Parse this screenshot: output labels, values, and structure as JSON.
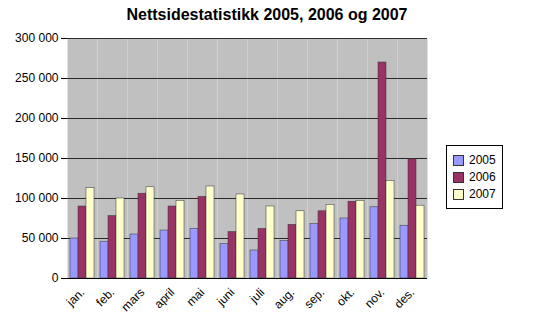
{
  "chart_data": {
    "type": "bar",
    "title": "Nettsidestatistikk 2005, 2006 og 2007",
    "categories": [
      "jan.",
      "feb.",
      "mars",
      "april",
      "mai",
      "juni",
      "juli",
      "aug.",
      "sep.",
      "okt.",
      "nov.",
      "des."
    ],
    "series": [
      {
        "name": "2005",
        "color": "#9999ff",
        "values": [
          50000,
          46000,
          55000,
          60000,
          62000,
          43000,
          35000,
          47000,
          68000,
          75000,
          89000,
          66000
        ]
      },
      {
        "name": "2006",
        "color": "#993366",
        "values": [
          90000,
          78000,
          106000,
          90000,
          102000,
          58000,
          62000,
          67000,
          84000,
          96000,
          270000,
          149000
        ]
      },
      {
        "name": "2007",
        "color": "#ffffcc",
        "values": [
          113000,
          100000,
          114000,
          97000,
          115000,
          105000,
          90000,
          84000,
          92000,
          97000,
          122000,
          91000
        ]
      }
    ],
    "ylim": [
      0,
      300000
    ],
    "yticks": [
      0,
      {
        "value": 50000,
        "label": "50 000"
      },
      {
        "value": 100000,
        "label": "100 000"
      },
      {
        "value": 150000,
        "label": "150 000"
      },
      {
        "value": 200000,
        "label": "200 000"
      },
      {
        "value": 250000,
        "label": "250 000"
      },
      {
        "value": 300000,
        "label": "300 000"
      }
    ],
    "grid": true,
    "legend": "right"
  }
}
